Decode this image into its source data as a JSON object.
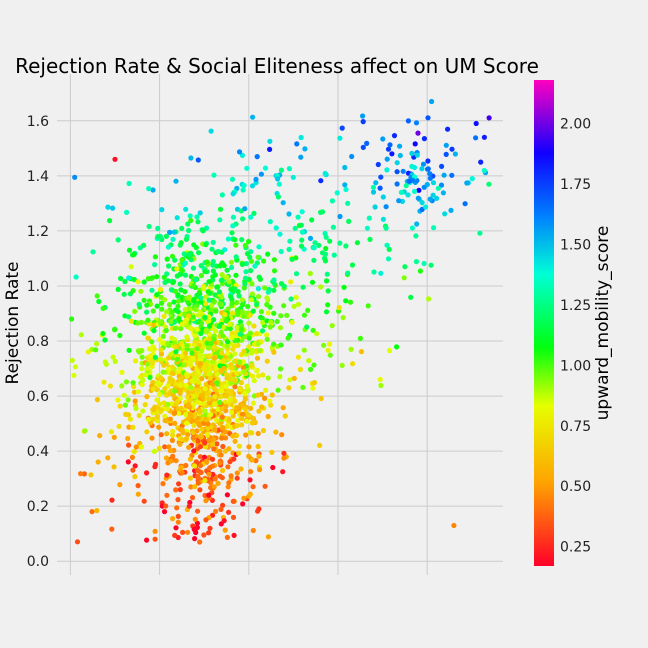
{
  "chart_data": {
    "type": "scatter",
    "title": "Rejection Rate & Social Eliteness affect on UM Score",
    "xlabel": "",
    "ylabel": "Rejection Rate",
    "ylim": [
      -0.05,
      1.77
    ],
    "xlim": [
      -0.15,
      4.85
    ],
    "x_ticks_shown": false,
    "y_ticks": [
      "0.0",
      "0.2",
      "0.4",
      "0.6",
      "0.8",
      "1.0",
      "1.2",
      "1.4",
      "1.6"
    ],
    "grid": true,
    "colorbar": {
      "label": "upward_mobility_score",
      "colormap": "gist_rainbow",
      "range": [
        0.17,
        2.18
      ],
      "ticks": [
        "0.25",
        "0.50",
        "0.75",
        "1.00",
        "1.25",
        "1.50",
        "1.75",
        "2.00"
      ]
    },
    "point_count": 2100,
    "clusters": [
      {
        "x_center": 1.5,
        "x_spread": 0.32,
        "y_center": 0.62,
        "y_spread": 0.22,
        "share": 0.55,
        "score_mean": 0.7
      },
      {
        "x_center": 1.5,
        "x_spread": 0.42,
        "y_center": 0.88,
        "y_spread": 0.2,
        "share": 0.25,
        "score_mean": 0.95
      },
      {
        "x_center": 2.6,
        "x_spread": 0.55,
        "y_center": 1.1,
        "y_spread": 0.25,
        "share": 0.1,
        "score_mean": 1.2
      },
      {
        "x_center": 3.9,
        "x_spread": 0.35,
        "y_center": 1.42,
        "y_spread": 0.1,
        "share": 0.05,
        "score_mean": 1.6
      },
      {
        "x_center": 0.6,
        "x_spread": 0.35,
        "y_center": 0.65,
        "y_spread": 0.25,
        "share": 0.05,
        "score_mean": 0.85
      }
    ],
    "sample_points": [
      {
        "x": 4.55,
        "y": 1.59,
        "score": 1.85
      },
      {
        "x": 4.05,
        "y": 1.67,
        "score": 1.55
      },
      {
        "x": 4.6,
        "y": 1.45,
        "score": 1.8
      },
      {
        "x": 0.5,
        "y": 1.46,
        "score": 0.2
      },
      {
        "x": 0.95,
        "y": 0.08,
        "score": 0.35
      },
      {
        "x": 4.3,
        "y": 0.13,
        "score": 0.45
      },
      {
        "x": 1.45,
        "y": 0.07,
        "score": 0.4
      }
    ]
  }
}
